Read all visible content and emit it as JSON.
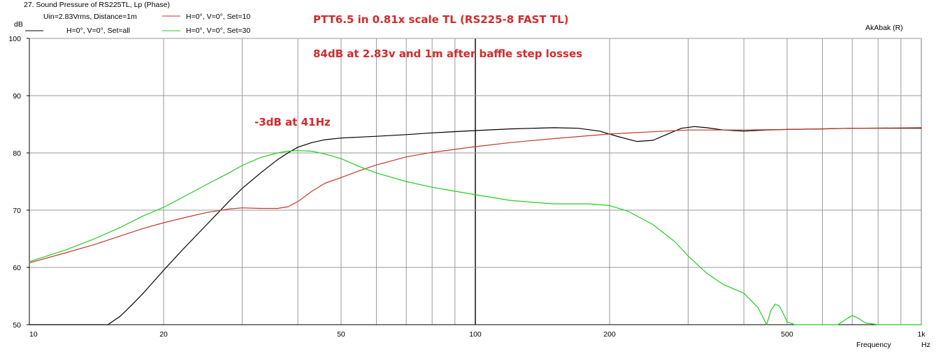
{
  "window_title": "27. Sound Pressure of RS225TL, Lp (Phase)",
  "legend": {
    "conditions": "Uin=2.83Vrms, Distance=1m",
    "entries": [
      {
        "label": "H=0°, V=0°, Set=all",
        "color": "#000000"
      },
      {
        "label": "H=0°, V=0°, Set=10",
        "color": "#c0392b"
      },
      {
        "label": "H=0°, V=0°, Set=30",
        "color": "#22cc22"
      }
    ]
  },
  "brand": "AkAbak (R)",
  "annotations": {
    "title": "PTT6.5 in 0.81x scale TL (RS225-8 FAST TL)",
    "sensitivity": "84dB at 2.83v and 1m after baffle step losses",
    "f3": "-3dB at 41Hz"
  },
  "chart_data": {
    "type": "line",
    "title": "PTT6.5 in 0.81x scale TL (RS225-8 FAST TL)",
    "xlabel": "Frequency",
    "xunit": "Hz",
    "ylabel": "dB",
    "xscale": "log",
    "xlim": [
      10,
      1000
    ],
    "ylim": [
      50,
      100
    ],
    "grid": true,
    "y_ticks": [
      "50",
      "60",
      "70",
      "80",
      "90",
      "100"
    ],
    "x_ticks": [
      {
        "value": 10,
        "label": "10"
      },
      {
        "value": 20,
        "label": "20"
      },
      {
        "value": 50,
        "label": "50"
      },
      {
        "value": 100,
        "label": "100"
      },
      {
        "value": 200,
        "label": "200"
      },
      {
        "value": 500,
        "label": "500"
      },
      {
        "value": 1000,
        "label": "1k"
      }
    ],
    "series": [
      {
        "name": "H=0°, V=0°, Set=all",
        "color": "#000000",
        "x": [
          10,
          15,
          16,
          17,
          18,
          20,
          22,
          25,
          28,
          30,
          33,
          36,
          38,
          40,
          43,
          46,
          50,
          60,
          70,
          80,
          100,
          120,
          150,
          170,
          190,
          210,
          230,
          250,
          270,
          290,
          310,
          330,
          360,
          400,
          450,
          500,
          600,
          700,
          800,
          1000
        ],
        "y": [
          50,
          50,
          51.5,
          53.5,
          55.5,
          59.5,
          63,
          67.5,
          71.5,
          73.8,
          76.5,
          78.8,
          80,
          81,
          81.8,
          82.3,
          82.6,
          82.9,
          83.2,
          83.5,
          83.9,
          84.2,
          84.4,
          84.3,
          83.8,
          82.8,
          82,
          82.2,
          83.3,
          84.3,
          84.6,
          84.4,
          84,
          83.8,
          84,
          84.1,
          84.2,
          84.3,
          84.3,
          84.3
        ]
      },
      {
        "name": "H=0°, V=0°, Set=10",
        "color": "#c0392b",
        "x": [
          10,
          12,
          14,
          16,
          18,
          20,
          22,
          25,
          28,
          30,
          33,
          36,
          38,
          40,
          43,
          46,
          50,
          55,
          60,
          70,
          80,
          100,
          120,
          150,
          200,
          250,
          300,
          400,
          500,
          700,
          1000
        ],
        "y": [
          60.8,
          62.5,
          64,
          65.5,
          66.8,
          67.8,
          68.6,
          69.6,
          70.2,
          70.4,
          70.3,
          70.3,
          70.6,
          71.5,
          73.3,
          74.7,
          75.7,
          76.9,
          77.9,
          79.3,
          80.1,
          81.1,
          81.8,
          82.5,
          83.3,
          83.7,
          84,
          84,
          84.1,
          84.3,
          84.4
        ]
      },
      {
        "name": "H=0°, V=0°, Set=30",
        "color": "#22cc22",
        "x": [
          10,
          12,
          14,
          16,
          18,
          20,
          22,
          25,
          28,
          30,
          33,
          36,
          38,
          40,
          43,
          46,
          50,
          55,
          60,
          70,
          80,
          100,
          120,
          150,
          180,
          200,
          220,
          250,
          280,
          300,
          330,
          360,
          400,
          430,
          450,
          460,
          470,
          480,
          490,
          500,
          520,
          550,
          600,
          650,
          680,
          700,
          720,
          750,
          800,
          1000
        ],
        "y": [
          61,
          63,
          65,
          67,
          69,
          70.5,
          72.2,
          74.5,
          76.5,
          77.8,
          79.2,
          80,
          80.3,
          80.4,
          80.3,
          79.8,
          79,
          77.6,
          76.5,
          75,
          74,
          72.7,
          71.7,
          71.1,
          71.1,
          70.8,
          69.8,
          67.5,
          64.5,
          62,
          59,
          57,
          55.5,
          53,
          50,
          52.5,
          53.6,
          53.3,
          52,
          50.5,
          50,
          50,
          50,
          50,
          51,
          51.6,
          51.2,
          50.3,
          50,
          50
        ]
      }
    ]
  }
}
